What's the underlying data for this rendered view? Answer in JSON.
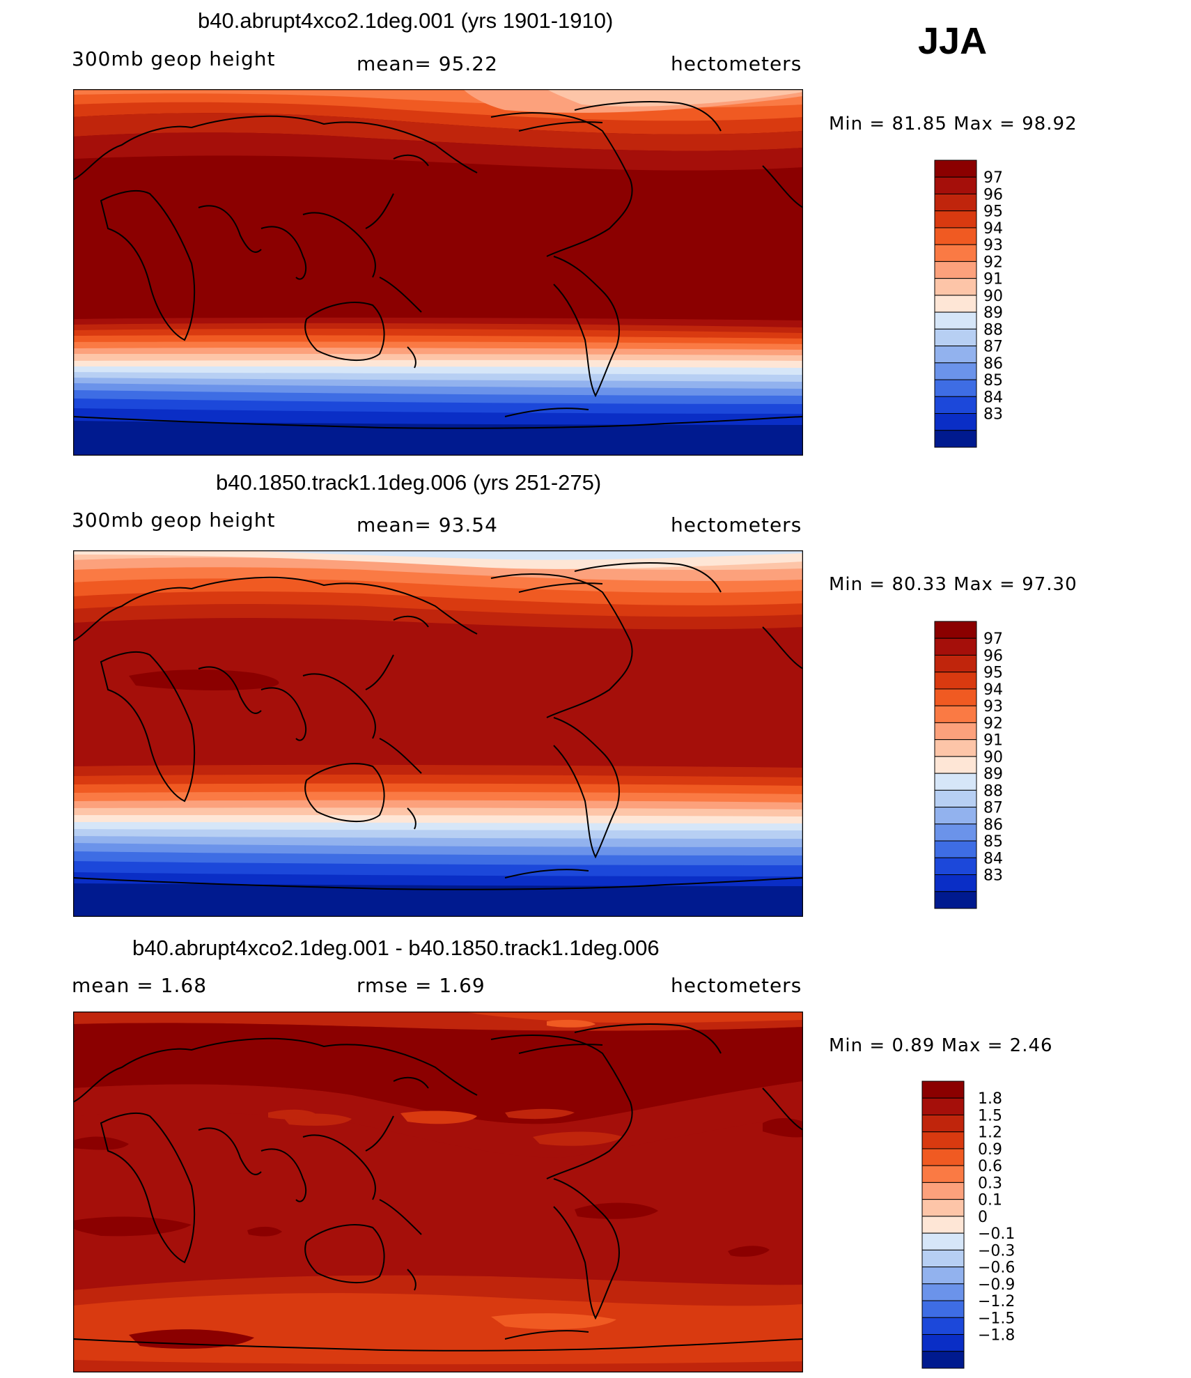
{
  "season": "JJA",
  "panels": [
    {
      "title": "b40.abrupt4xco2.1deg.001 (yrs 1901-1910)",
      "left_label": "300mb geop height",
      "center_label": "mean=  95.22",
      "units": "hectometers",
      "minmax": "Min =   81.85 Max =   98.92",
      "colorbar": {
        "labels": [
          "97",
          "96",
          "95",
          "94",
          "93",
          "92",
          "91",
          "90",
          "89",
          "88",
          "87",
          "86",
          "85",
          "84",
          "83"
        ],
        "colors": [
          "#8b0000",
          "#a50f0a",
          "#c0250c",
          "#d93a10",
          "#f05a22",
          "#fa7a44",
          "#fca17c",
          "#fdc5a8",
          "#fee6d6",
          "#d6e6f8",
          "#b7cff3",
          "#92b2ee",
          "#6b93ea",
          "#3e6de4",
          "#1c48da",
          "#0a2ec6",
          "#001a8f"
        ]
      }
    },
    {
      "title": "b40.1850.track1.1deg.006 (yrs 251-275)",
      "left_label": "300mb geop height",
      "center_label": "mean=  93.54",
      "units": "hectometers",
      "minmax": "Min =   80.33 Max =   97.30",
      "colorbar": {
        "labels": [
          "97",
          "96",
          "95",
          "94",
          "93",
          "92",
          "91",
          "90",
          "89",
          "88",
          "87",
          "86",
          "85",
          "84",
          "83"
        ],
        "colors": [
          "#8b0000",
          "#a50f0a",
          "#c0250c",
          "#d93a10",
          "#f05a22",
          "#fa7a44",
          "#fca17c",
          "#fdc5a8",
          "#fee6d6",
          "#d6e6f8",
          "#b7cff3",
          "#92b2ee",
          "#6b93ea",
          "#3e6de4",
          "#1c48da",
          "#0a2ec6",
          "#001a8f"
        ]
      }
    },
    {
      "title": "b40.abrupt4xco2.1deg.001 - b40.1850.track1.1deg.006",
      "left_label": "mean =    1.68",
      "center_label": "rmse =    1.69",
      "units": "hectometers",
      "minmax": "Min =    0.89 Max =    2.46",
      "colorbar": {
        "labels": [
          "1.8",
          "1.5",
          "1.2",
          "0.9",
          "0.6",
          "0.3",
          "0.1",
          "0",
          "−0.1",
          "−0.3",
          "−0.6",
          "−0.9",
          "−1.2",
          "−1.5",
          "−1.8"
        ],
        "colors": [
          "#8b0000",
          "#a50f0a",
          "#c0250c",
          "#d93a10",
          "#f05a22",
          "#fa7a44",
          "#fca17c",
          "#fdc5a8",
          "#fee6d6",
          "#d6e6f8",
          "#b7cff3",
          "#92b2ee",
          "#6b93ea",
          "#3e6de4",
          "#1c48da",
          "#0a2ec6",
          "#001a8f"
        ]
      }
    }
  ]
}
